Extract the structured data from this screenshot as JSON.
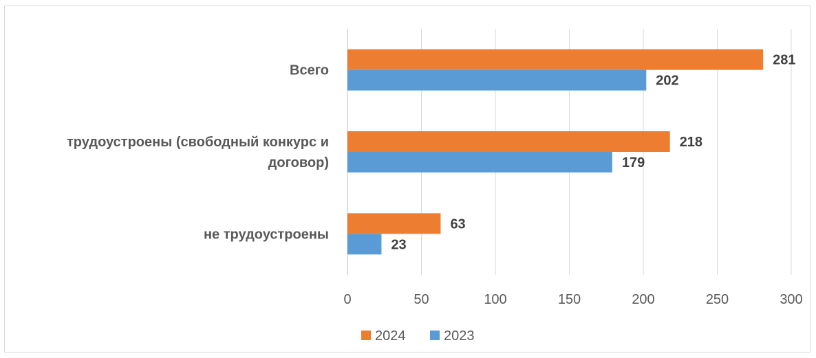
{
  "chart_data": {
    "type": "bar",
    "orientation": "horizontal",
    "categories": [
      [
        "Всего"
      ],
      [
        "трудоустроены (свободный конкурс и",
        "договор)"
      ],
      [
        "не трудоустроены"
      ]
    ],
    "series": [
      {
        "name": "2024",
        "color": "#ED7D31",
        "values": [
          281,
          218,
          63
        ]
      },
      {
        "name": "2023",
        "color": "#5B9BD5",
        "values": [
          202,
          179,
          23
        ]
      }
    ],
    "xlim": [
      0,
      300
    ],
    "xticks": [
      0,
      50,
      100,
      150,
      200,
      250,
      300
    ],
    "grid": true,
    "legend": "bottom",
    "data_labels": true,
    "title": "",
    "xlabel": "",
    "ylabel": ""
  }
}
